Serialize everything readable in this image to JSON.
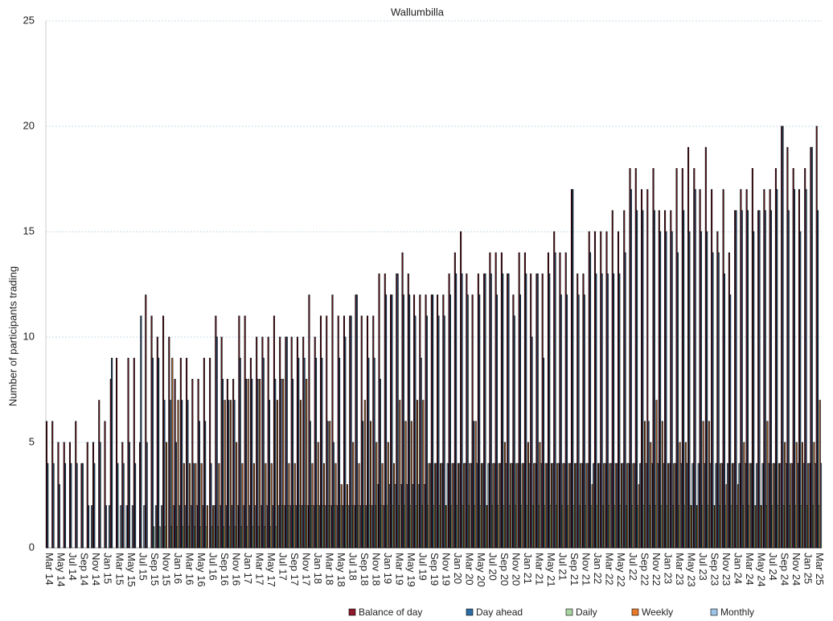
{
  "chart_data": {
    "type": "bar",
    "title": "Wallumbilla",
    "y_label": "Number of participants trading",
    "categories": [
      "Mar 14",
      null,
      "May 14",
      null,
      "Jul 14",
      null,
      "Sep 14",
      null,
      "Nov 14",
      null,
      "Jan 15",
      null,
      "Mar 15",
      null,
      "May 15",
      null,
      "Jul 15",
      null,
      "Sep 15",
      null,
      "Nov 15",
      null,
      "Jan 16",
      null,
      "Mar 16",
      null,
      "May 16",
      null,
      "Jul 16",
      null,
      "Sep 16",
      null,
      "Nov 16",
      null,
      "Jan 17",
      null,
      "Mar 17",
      null,
      "May 17",
      null,
      "Jul 17",
      null,
      "Sep 17",
      null,
      "Nov 17",
      null,
      "Jan 18",
      null,
      "Mar 18",
      null,
      "May 18",
      null,
      "Jul 18",
      null,
      "Sep 18",
      null,
      "Nov 18",
      null,
      "Jan 19",
      null,
      "Mar 19",
      null,
      "May 19",
      null,
      "Jul 19",
      null,
      "Sep 19",
      null,
      "Nov 19",
      null,
      "Jan 20",
      null,
      "Mar 20",
      null,
      "May 20",
      null,
      "Jul 20",
      null,
      "Sep 20",
      null,
      "Nov 20",
      null,
      "Jan 21",
      null,
      "Mar 21",
      null,
      "May 21",
      null,
      "Jul 21",
      null,
      "Sep 21",
      null,
      "Nov 21",
      null,
      "Jan 22",
      null,
      "Mar 22",
      null,
      "May 22",
      null,
      "Jul 22",
      null,
      "Sep 22",
      null,
      "Nov 22",
      null,
      "Jan 23",
      null,
      "Mar 23",
      null,
      "May 23",
      null,
      "Jul 23",
      null,
      "Sep 23",
      null,
      "Nov 23",
      null,
      "Jan 24",
      null,
      "Mar 24",
      null,
      "May 24",
      null,
      "Jul 24",
      null,
      "Sep 24",
      null,
      "Nov 24",
      null,
      "Jan 25",
      null,
      "Mar 25"
    ],
    "series": [
      {
        "name": "Balance of day",
        "color": "#8b1a2b",
        "values": [
          6,
          6,
          5,
          5,
          5,
          6,
          4,
          5,
          5,
          7,
          6,
          8,
          9,
          5,
          9,
          9,
          5,
          12,
          11,
          10,
          11,
          10,
          8,
          9,
          9,
          8,
          8,
          9,
          9,
          11,
          10,
          8,
          8,
          11,
          11,
          9,
          10,
          10,
          10,
          11,
          10,
          10,
          10,
          10,
          10,
          12,
          10,
          11,
          11,
          12,
          11,
          11,
          11,
          12,
          11,
          11,
          11,
          13,
          13,
          12,
          13,
          14,
          13,
          12,
          12,
          12,
          12,
          12,
          12,
          13,
          14,
          15,
          13,
          12,
          13,
          13,
          14,
          14,
          14,
          13,
          12,
          14,
          14,
          13,
          13,
          13,
          14,
          15,
          14,
          14,
          17,
          13,
          13,
          15,
          15,
          15,
          15,
          16,
          15,
          16,
          18,
          18,
          17,
          17,
          18,
          16,
          16,
          16,
          18,
          18,
          19,
          18,
          17,
          19,
          17,
          15,
          17,
          14,
          16,
          17,
          17,
          18,
          16,
          17,
          17,
          18,
          20,
          19,
          18,
          17,
          18,
          19,
          20
        ]
      },
      {
        "name": "Day ahead",
        "color": "#2e6da4",
        "values": [
          4,
          4,
          3,
          4,
          4,
          4,
          4,
          2,
          4,
          5,
          2,
          9,
          4,
          4,
          5,
          4,
          11,
          5,
          9,
          9,
          7,
          7,
          5,
          7,
          7,
          4,
          6,
          6,
          4,
          10,
          8,
          7,
          7,
          9,
          8,
          8,
          8,
          9,
          7,
          8,
          8,
          10,
          8,
          9,
          9,
          6,
          9,
          9,
          6,
          5,
          9,
          10,
          11,
          12,
          6,
          9,
          9,
          8,
          12,
          12,
          13,
          12,
          12,
          11,
          9,
          11,
          12,
          11,
          11,
          12,
          13,
          13,
          12,
          6,
          12,
          13,
          13,
          12,
          13,
          13,
          11,
          12,
          13,
          10,
          13,
          9,
          13,
          14,
          12,
          12,
          17,
          12,
          12,
          14,
          13,
          13,
          13,
          13,
          13,
          14,
          17,
          16,
          16,
          6,
          16,
          15,
          15,
          15,
          14,
          16,
          15,
          17,
          15,
          15,
          14,
          14,
          13,
          12,
          16,
          16,
          16,
          15,
          16,
          16,
          16,
          17,
          20,
          16,
          17,
          15,
          17,
          19,
          16
        ]
      },
      {
        "name": "Daily",
        "color": "#a8d5a2",
        "values": [
          0,
          0,
          0,
          0,
          0,
          0,
          0,
          0,
          0,
          0,
          0,
          0,
          0,
          0,
          0,
          0,
          0,
          0,
          1,
          1,
          1,
          1,
          1,
          1,
          1,
          1,
          1,
          1,
          1,
          1,
          1,
          1,
          1,
          1,
          1,
          1,
          1,
          1,
          1,
          1,
          2,
          2,
          2,
          2,
          2,
          2,
          2,
          2,
          2,
          2,
          2,
          2,
          2,
          2,
          2,
          2,
          2,
          2,
          2,
          2,
          2,
          2,
          2,
          2,
          2,
          2,
          2,
          2,
          2,
          2,
          2,
          2,
          2,
          2,
          2,
          2,
          2,
          2,
          2,
          2,
          2,
          2,
          2,
          2,
          2,
          2,
          2,
          2,
          2,
          2,
          2,
          2,
          2,
          2,
          2,
          2,
          2,
          2,
          2,
          2,
          2,
          2,
          2,
          2,
          2,
          2,
          2,
          2,
          2,
          2,
          2,
          2,
          2,
          2,
          2,
          2,
          2,
          2,
          2,
          2,
          2,
          2,
          2,
          2,
          2,
          2,
          2,
          2,
          2,
          2,
          2,
          2,
          2
        ]
      },
      {
        "name": "Weekly",
        "color": "#e87b2a",
        "values": [
          0,
          0,
          0,
          0,
          0,
          0,
          0,
          0,
          0,
          0,
          0,
          0,
          0,
          0,
          0,
          0,
          0,
          0,
          0,
          0,
          5,
          9,
          7,
          4,
          4,
          4,
          4,
          2,
          2,
          4,
          7,
          7,
          5,
          4,
          8,
          4,
          8,
          4,
          4,
          7,
          8,
          4,
          4,
          7,
          8,
          4,
          5,
          4,
          6,
          4,
          3,
          3,
          5,
          4,
          7,
          6,
          5,
          4,
          5,
          4,
          7,
          6,
          6,
          7,
          7,
          4,
          4,
          4,
          2,
          4,
          4,
          4,
          4,
          6,
          4,
          2,
          4,
          4,
          5,
          4,
          4,
          4,
          5,
          4,
          5,
          4,
          4,
          4,
          4,
          4,
          4,
          4,
          4,
          3,
          4,
          4,
          4,
          4,
          4,
          4,
          4,
          3,
          6,
          5,
          7,
          6,
          4,
          4,
          5,
          5,
          2,
          2,
          6,
          6,
          2,
          4,
          3,
          4,
          3,
          5,
          4,
          2,
          2,
          6,
          4,
          4,
          5,
          4,
          5,
          5,
          4,
          5,
          7
        ]
      },
      {
        "name": "Monthly",
        "color": "#9dc3e6",
        "values": [
          0,
          0,
          0,
          0,
          0,
          0,
          0,
          2,
          0,
          0,
          2,
          0,
          2,
          2,
          2,
          0,
          2,
          0,
          2,
          2,
          0,
          2,
          2,
          2,
          2,
          2,
          2,
          0,
          2,
          2,
          2,
          2,
          2,
          2,
          2,
          2,
          2,
          2,
          2,
          2,
          2,
          2,
          2,
          2,
          2,
          2,
          2,
          2,
          2,
          2,
          2,
          2,
          2,
          2,
          2,
          2,
          3,
          2,
          3,
          3,
          3,
          3,
          3,
          3,
          3,
          4,
          4,
          4,
          4,
          4,
          4,
          4,
          4,
          4,
          4,
          4,
          4,
          4,
          4,
          4,
          4,
          4,
          4,
          4,
          4,
          4,
          4,
          4,
          4,
          4,
          4,
          4,
          4,
          4,
          4,
          4,
          4,
          4,
          4,
          4,
          4,
          4,
          4,
          4,
          4,
          4,
          4,
          4,
          4,
          4,
          4,
          4,
          4,
          4,
          4,
          4,
          4,
          4,
          4,
          4,
          4,
          4,
          4,
          4,
          4,
          4,
          4,
          4,
          4,
          4,
          4,
          4,
          4
        ]
      }
    ],
    "ylim": [
      0,
      25
    ],
    "yticks": [
      0,
      5,
      10,
      15,
      20,
      25
    ],
    "grid": true,
    "legend": "bottom"
  }
}
